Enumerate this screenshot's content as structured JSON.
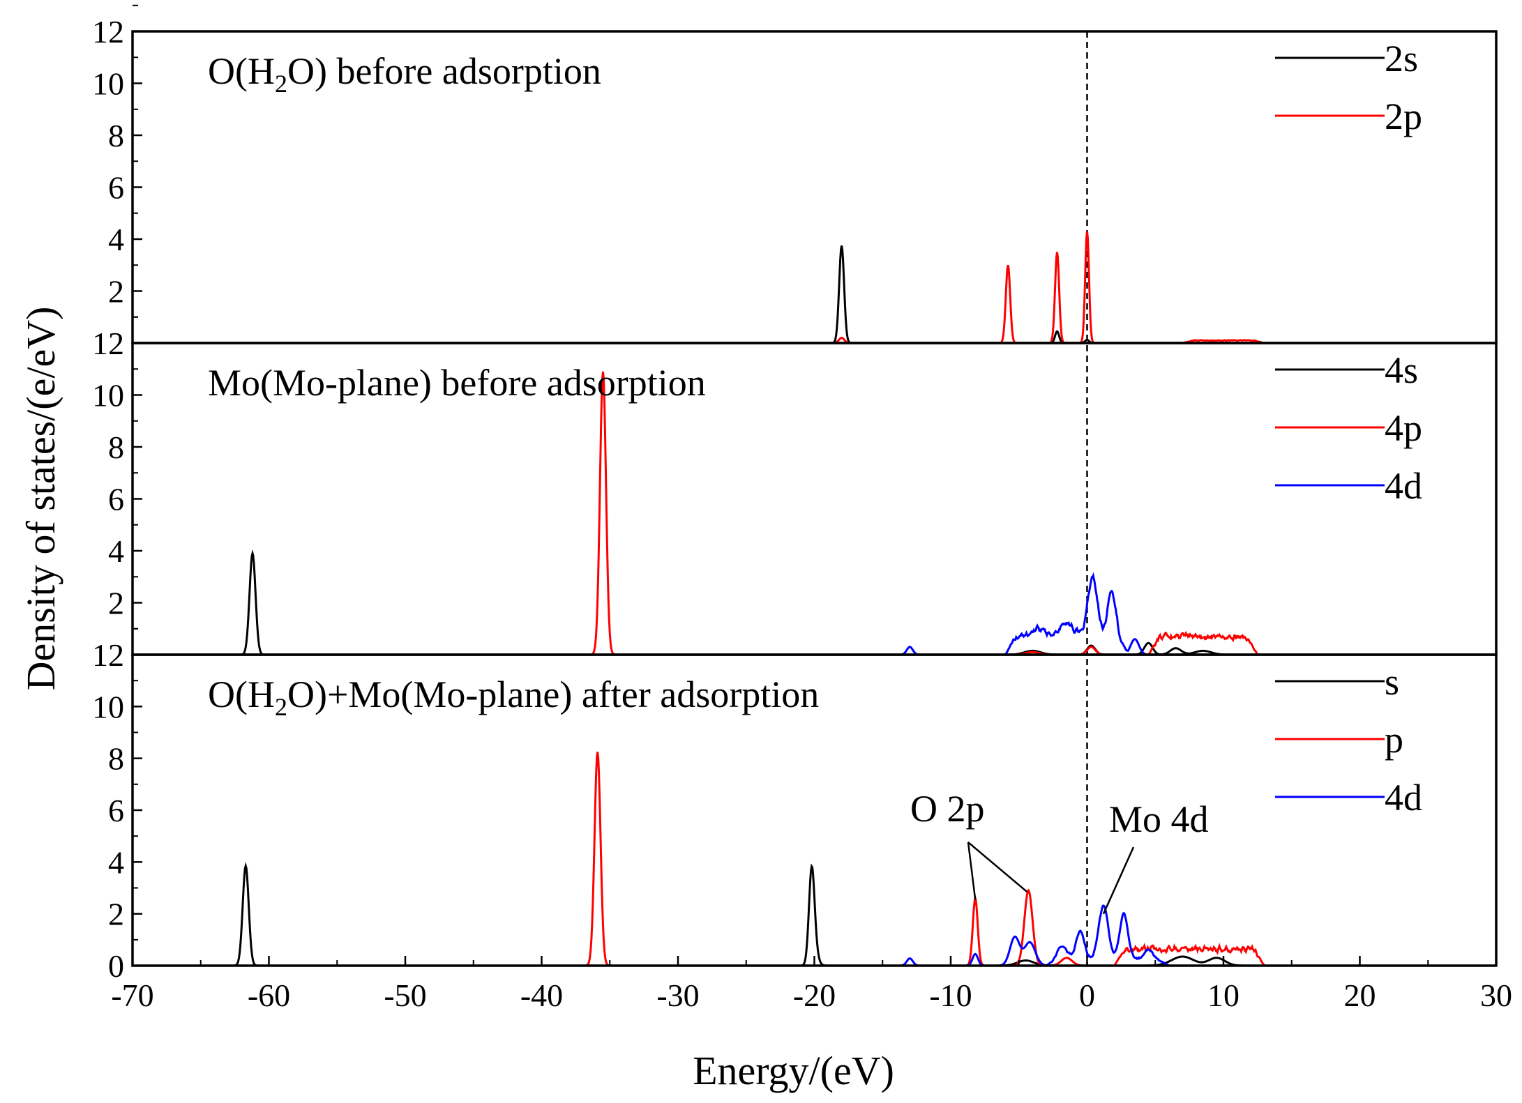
{
  "chart_data": {
    "type": "line",
    "xlabel": "Energy/(eV)",
    "ylabel": "Density of states/(e/eV)",
    "xlim": [
      -70,
      30
    ],
    "x_ticks": [
      "-70",
      "-60",
      "-50",
      "-40",
      "-30",
      "-20",
      "-10",
      "0",
      "10",
      "20",
      "30"
    ],
    "y_ticks": [
      "0",
      "2",
      "4",
      "6",
      "8",
      "10",
      "12"
    ],
    "fermi_level": 0,
    "panels": [
      {
        "title_pre": "O(H",
        "title_sub": "2",
        "title_post": "O) before adsorption",
        "ylim": [
          0,
          12
        ],
        "series": [
          {
            "name": "2s",
            "color": "#000000",
            "x_range": [
              -20,
              19
            ],
            "peaks": [
              [
                -18,
                3.55,
                0.18
              ],
              [
                -2.2,
                0.45,
                0.15
              ],
              [
                0,
                0.12,
                0.15
              ],
              [
                -18,
                0.2,
                0.18
              ]
            ]
          },
          {
            "name": "2p",
            "color": "#ff0000",
            "x_range": [
              -20,
              19
            ],
            "peaks": [
              [
                -5.8,
                3.0,
                0.16
              ],
              [
                -2.2,
                3.5,
                0.15
              ],
              [
                0,
                4.3,
                0.14
              ],
              [
                -18,
                0.2,
                0.2
              ]
            ],
            "band": [
              7,
              13,
              0.1
            ]
          }
        ]
      },
      {
        "title_pre": "Mo(Mo-plane) before adsorption",
        "title_sub": "",
        "title_post": "",
        "ylim": [
          0,
          12
        ],
        "series": [
          {
            "name": "4s",
            "color": "#000000",
            "x_range": [
              -63.5,
              16
            ],
            "peaks": [
              [
                -61.2,
                3.9,
                0.22
              ],
              [
                0.3,
                0.35,
                0.3
              ],
              [
                4.5,
                0.45,
                0.3
              ],
              [
                -4,
                0.15,
                0.6
              ],
              [
                6.5,
                0.25,
                0.4
              ],
              [
                8.5,
                0.15,
                0.6
              ]
            ]
          },
          {
            "name": "4p",
            "color": "#ff0000",
            "x_range": [
              -63.5,
              14
            ],
            "peaks": [
              [
                -35.5,
                10.9,
                0.22
              ],
              [
                0.3,
                0.3,
                0.3
              ],
              [
                -4,
                0.1,
                0.5
              ]
            ],
            "band": [
              4.5,
              12.5,
              0.7
            ]
          },
          {
            "name": "4d",
            "color": "#0000ff",
            "x_range": [
              -63.5,
              14
            ],
            "peaks": [
              [
                -13,
                0.3,
                0.22
              ],
              [
                0.4,
                2.3,
                0.35
              ],
              [
                1.8,
                1.7,
                0.3
              ],
              [
                3.5,
                0.6,
                0.3
              ],
              [
                -1.5,
                0.5,
                0.5
              ],
              [
                -3.5,
                0.3,
                0.5
              ]
            ],
            "band": [
              -6,
              3,
              0.7
            ]
          }
        ]
      },
      {
        "title_pre": "O(H",
        "title_sub": "2",
        "title_post": "O)+Mo(Mo-plane) after adsorption",
        "ylim": [
          0,
          12
        ],
        "series": [
          {
            "name": "s",
            "color": "#000000",
            "x_range": [
              -64,
              14
            ],
            "peaks": [
              [
                -61.7,
                3.85,
                0.22
              ],
              [
                -20.2,
                3.4,
                0.2
              ],
              [
                -20,
                0.6,
                0.25
              ],
              [
                -4.5,
                0.2,
                0.6
              ],
              [
                7,
                0.35,
                0.8
              ],
              [
                9.5,
                0.3,
                0.6
              ]
            ]
          },
          {
            "name": "p",
            "color": "#ff0000",
            "x_range": [
              -64,
              14
            ],
            "peaks": [
              [
                -35.9,
                8.25,
                0.22
              ],
              [
                -8.2,
                2.6,
                0.18
              ],
              [
                -4.3,
                2.9,
                0.3
              ],
              [
                -1.5,
                0.3,
                0.4
              ]
            ],
            "band": [
              2,
              13,
              0.65
            ]
          },
          {
            "name": "4d",
            "color": "#0000ff",
            "x_range": [
              -64,
              14
            ],
            "peaks": [
              [
                -13,
                0.28,
                0.22
              ],
              [
                -8.2,
                0.45,
                0.2
              ],
              [
                -5.3,
                1.1,
                0.35
              ],
              [
                -4.2,
                0.9,
                0.4
              ],
              [
                -1.8,
                0.5,
                0.35
              ],
              [
                -0.5,
                1.1,
                0.3
              ],
              [
                1.2,
                2.05,
                0.35
              ],
              [
                2.7,
                1.75,
                0.3
              ],
              [
                4.5,
                0.35,
                0.3
              ]
            ],
            "band": [
              -3,
              6,
              0.25
            ]
          }
        ],
        "annotations": [
          {
            "text": "O 2p",
            "points_to": [
              [
                -8.2,
                2.6
              ],
              [
                -4.4,
                2.9
              ]
            ]
          },
          {
            "text": "Mo 4d",
            "points_to": [
              [
                1.2,
                2.05
              ]
            ]
          }
        ]
      }
    ]
  }
}
